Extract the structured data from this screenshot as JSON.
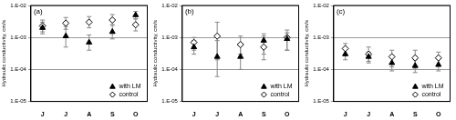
{
  "chart_data": [
    {
      "type": "scatter",
      "title": "(a)",
      "y_label": "Hydraulic conductivity, cm/s",
      "categories": [
        "J",
        "J",
        "A",
        "S",
        "O"
      ],
      "series": [
        {
          "name": "with LM",
          "color": "#000000",
          "marker": "triangle",
          "values": [
            0.002,
            0.0011,
            0.0007,
            0.0015,
            0.005
          ],
          "lower": [
            0.0013,
            0.0005,
            0.0004,
            0.0009,
            0.0038
          ],
          "upper": [
            0.003,
            0.0022,
            0.0012,
            0.0025,
            0.0065
          ]
        },
        {
          "name": "control",
          "color": "#ffffff",
          "marker": "diamond",
          "values": [
            0.0023,
            0.0028,
            0.003,
            0.0035,
            0.0025
          ],
          "lower": [
            0.0015,
            0.0018,
            0.002,
            0.0024,
            0.0016
          ],
          "upper": [
            0.0035,
            0.0042,
            0.0045,
            0.0052,
            0.0038
          ]
        }
      ],
      "ylim": [
        1e-05,
        0.01
      ],
      "yticks": [
        {
          "value": 1e-05,
          "label": "1.E-05"
        },
        {
          "value": 0.0001,
          "label": "1.E-04"
        },
        {
          "value": 0.001,
          "label": "1.E-03"
        },
        {
          "value": 0.01,
          "label": "1.E-02"
        }
      ],
      "log": "y",
      "grid": true,
      "legend": "lower right"
    },
    {
      "type": "scatter",
      "title": "(b)",
      "y_label": "Hydraulic conductivity, cm/s",
      "categories": [
        "J",
        "J",
        "A",
        "S",
        "O"
      ],
      "series": [
        {
          "name": "with LM",
          "color": "#000000",
          "marker": "triangle",
          "values": [
            0.0005,
            0.00025,
            0.00025,
            0.0008,
            0.0009
          ],
          "lower": [
            0.0003,
            6e-05,
            0.0001,
            0.0003,
            0.0004
          ],
          "upper": [
            0.0008,
            0.0008,
            0.0006,
            0.0013,
            0.0014
          ]
        },
        {
          "name": "control",
          "color": "#ffffff",
          "marker": "diamond",
          "values": [
            0.0007,
            0.0011,
            0.0006,
            0.0005,
            0.001
          ],
          "lower": [
            0.0004,
            0.0002,
            0.0003,
            0.0002,
            0.0004
          ],
          "upper": [
            0.001,
            0.003,
            0.0011,
            0.0011,
            0.0017
          ]
        }
      ],
      "ylim": [
        1e-05,
        0.01
      ],
      "yticks": [
        {
          "value": 1e-05,
          "label": "1.E-05"
        },
        {
          "value": 0.0001,
          "label": "1.E-04"
        },
        {
          "value": 0.001,
          "label": "1.E-03"
        },
        {
          "value": 0.01,
          "label": "1.E-02"
        }
      ],
      "log": "y",
      "grid": true,
      "legend": "lower right"
    },
    {
      "type": "scatter",
      "title": "(c)",
      "y_label": "Hydraulic conductivity, cm/s",
      "categories": [
        "J",
        "J",
        "A",
        "S",
        "O"
      ],
      "series": [
        {
          "name": "with LM",
          "color": "#000000",
          "marker": "triangle",
          "values": [
            0.0003,
            0.00025,
            0.00016,
            0.00013,
            0.00014
          ],
          "lower": [
            0.0002,
            0.00016,
            9e-05,
            8e-05,
            9e-05
          ],
          "upper": [
            0.00042,
            0.00035,
            0.00025,
            0.0002,
            0.00021
          ]
        },
        {
          "name": "control",
          "color": "#ffffff",
          "marker": "diamond",
          "values": [
            0.00045,
            0.0003,
            0.00025,
            0.00023,
            0.00023
          ],
          "lower": [
            0.0003,
            0.00018,
            0.00012,
            0.00011,
            0.00013
          ],
          "upper": [
            0.00065,
            0.0005,
            0.0004,
            0.0004,
            0.00035
          ]
        }
      ],
      "ylim": [
        1e-05,
        0.01
      ],
      "yticks": [
        {
          "value": 1e-05,
          "label": "1.E-05"
        },
        {
          "value": 0.0001,
          "label": "1.E-04"
        },
        {
          "value": 0.001,
          "label": "1.E-03"
        },
        {
          "value": 0.01,
          "label": "1.E-02"
        }
      ],
      "log": "y",
      "grid": true,
      "legend": "lower right"
    }
  ]
}
